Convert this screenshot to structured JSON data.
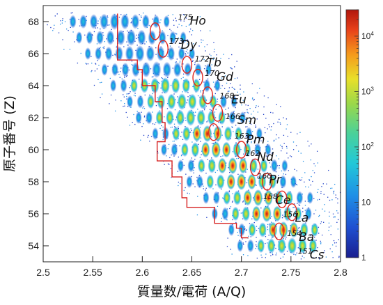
{
  "chart_data": {
    "type": "heatmap",
    "title": "",
    "xlabel": "質量数/電荷 (A/Q)",
    "ylabel": "原子番号 (Z)",
    "xlim": [
      2.5,
      2.8
    ],
    "ylim": [
      53,
      69
    ],
    "x_ticks": [
      "2.5",
      "2.55",
      "2.6",
      "2.65",
      "2.7",
      "2.75",
      "2.8"
    ],
    "y_ticks": [
      "54",
      "56",
      "58",
      "60",
      "62",
      "64",
      "66",
      "68"
    ],
    "colorbar": {
      "scale": "log",
      "range": [
        1,
        30000
      ],
      "tick_labels": [
        {
          "base": "1",
          "exp": ""
        },
        {
          "base": "10",
          "exp": ""
        },
        {
          "base": "10",
          "exp": "2"
        },
        {
          "base": "10",
          "exp": "3"
        },
        {
          "base": "10",
          "exp": "4"
        }
      ],
      "colors": [
        "#1a1f8f",
        "#1f4fd0",
        "#1f8fe6",
        "#22c8d8",
        "#4ad19a",
        "#9ad84a",
        "#e8e02a",
        "#f59a1c",
        "#e8401a",
        "#b0160d"
      ]
    },
    "isotopes": [
      {
        "mass": "175",
        "symbol": "Ho",
        "aq": 2.636,
        "z": 67.8
      },
      {
        "mass": "173",
        "symbol": "Dy",
        "aq": 2.627,
        "z": 66.3
      },
      {
        "mass": "172",
        "symbol": "Tb",
        "aq": 2.653,
        "z": 65.2
      },
      {
        "mass": "170",
        "symbol": "Gd",
        "aq": 2.663,
        "z": 64.3
      },
      {
        "mass": "168",
        "symbol": "Eu",
        "aq": 2.678,
        "z": 62.9
      },
      {
        "mass": "166",
        "symbol": "Sm",
        "aq": 2.684,
        "z": 61.6
      },
      {
        "mass": "163",
        "symbol": "Pm",
        "aq": 2.693,
        "z": 60.4
      },
      {
        "mass": "162",
        "symbol": "Nd",
        "aq": 2.704,
        "z": 59.3
      },
      {
        "mass": "160",
        "symbol": "Pr",
        "aq": 2.716,
        "z": 57.9
      },
      {
        "mass": "158",
        "symbol": "Ce",
        "aq": 2.722,
        "z": 56.6
      },
      {
        "mass": "156",
        "symbol": "La",
        "aq": 2.742,
        "z": 55.5
      },
      {
        "mass": "154",
        "symbol": "Ba",
        "aq": 2.746,
        "z": 54.3
      },
      {
        "mass": "151",
        "symbol": "Cs",
        "aq": 2.757,
        "z": 53.2
      }
    ],
    "red_circles": [
      {
        "aq": 2.613,
        "z": 67.4
      },
      {
        "aq": 2.621,
        "z": 66.3
      },
      {
        "aq": 2.645,
        "z": 65.3
      },
      {
        "aq": 2.656,
        "z": 64.5
      },
      {
        "aq": 2.666,
        "z": 63.4
      },
      {
        "aq": 2.676,
        "z": 62.3
      },
      {
        "aq": 2.672,
        "z": 61.1
      },
      {
        "aq": 2.7,
        "z": 60.0
      },
      {
        "aq": 2.714,
        "z": 58.9
      },
      {
        "aq": 2.726,
        "z": 58.0
      },
      {
        "aq": 2.741,
        "z": 56.9
      },
      {
        "aq": 2.751,
        "z": 56.1
      },
      {
        "aq": 2.738,
        "z": 54.9
      }
    ],
    "boundary_line": [
      [
        2.575,
        68.5
      ],
      [
        2.575,
        65.6
      ],
      [
        2.595,
        65.6
      ],
      [
        2.595,
        65.0
      ],
      [
        2.6,
        65.0
      ],
      [
        2.6,
        64.0
      ],
      [
        2.613,
        64.0
      ],
      [
        2.613,
        63.0
      ],
      [
        2.62,
        63.0
      ],
      [
        2.62,
        61.7
      ],
      [
        2.623,
        61.7
      ],
      [
        2.623,
        60.5
      ],
      [
        2.615,
        60.5
      ],
      [
        2.615,
        59.3
      ],
      [
        2.63,
        59.3
      ],
      [
        2.63,
        58.3
      ],
      [
        2.64,
        58.3
      ],
      [
        2.64,
        57.0
      ],
      [
        2.645,
        57.0
      ],
      [
        2.645,
        56.4
      ],
      [
        2.66,
        56.4
      ],
      [
        2.66,
        56.4
      ],
      [
        2.673,
        56.4
      ],
      [
        2.673,
        55.4
      ],
      [
        2.695,
        55.4
      ],
      [
        2.695,
        55.1
      ],
      [
        2.7,
        55.1
      ],
      [
        2.7,
        54.5
      ],
      [
        2.707,
        54.5
      ]
    ]
  }
}
